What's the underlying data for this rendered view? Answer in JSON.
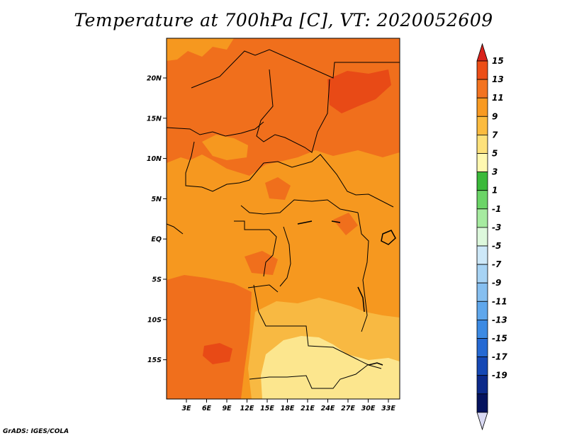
{
  "title": "Temperature at 700hPa [C], VT: 2020052609",
  "credit": "GrADS: IGES/COLA",
  "map": {
    "lon_ticks": [
      "3E",
      "6E",
      "9E",
      "12E",
      "15E",
      "18E",
      "21E",
      "24E",
      "27E",
      "30E",
      "33E"
    ],
    "lat_ticks": [
      "20N",
      "15N",
      "10N",
      "5N",
      "EQ",
      "5S",
      "10S",
      "15S"
    ],
    "region": "Central Africa",
    "field_colors": {
      "11_13": "#f06f1c",
      "9_11": "#f6981f",
      "7_9": "#f8b942",
      "5_7": "#fce68e",
      "13_15": "#e84a16"
    }
  },
  "colorbar": {
    "labels": [
      "15",
      "13",
      "11",
      "9",
      "7",
      "5",
      "3",
      "1",
      "-1",
      "-3",
      "-5",
      "-7",
      "-9",
      "-11",
      "-13",
      "-15",
      "-17",
      "-19"
    ],
    "colors": [
      "#d8221b",
      "#ec4e17",
      "#f37320",
      "#f89a22",
      "#fbbb3f",
      "#fde17b",
      "#fff8b0",
      "#3bb93a",
      "#6bd467",
      "#a6eba0",
      "#ddf8dc",
      "#cde8f8",
      "#a7d3f4",
      "#86bff0",
      "#5fa7ec",
      "#3c8ae3",
      "#2569d3",
      "#1548b5",
      "#0c2a8a",
      "#05135e",
      "#d9d9f3"
    ]
  }
}
